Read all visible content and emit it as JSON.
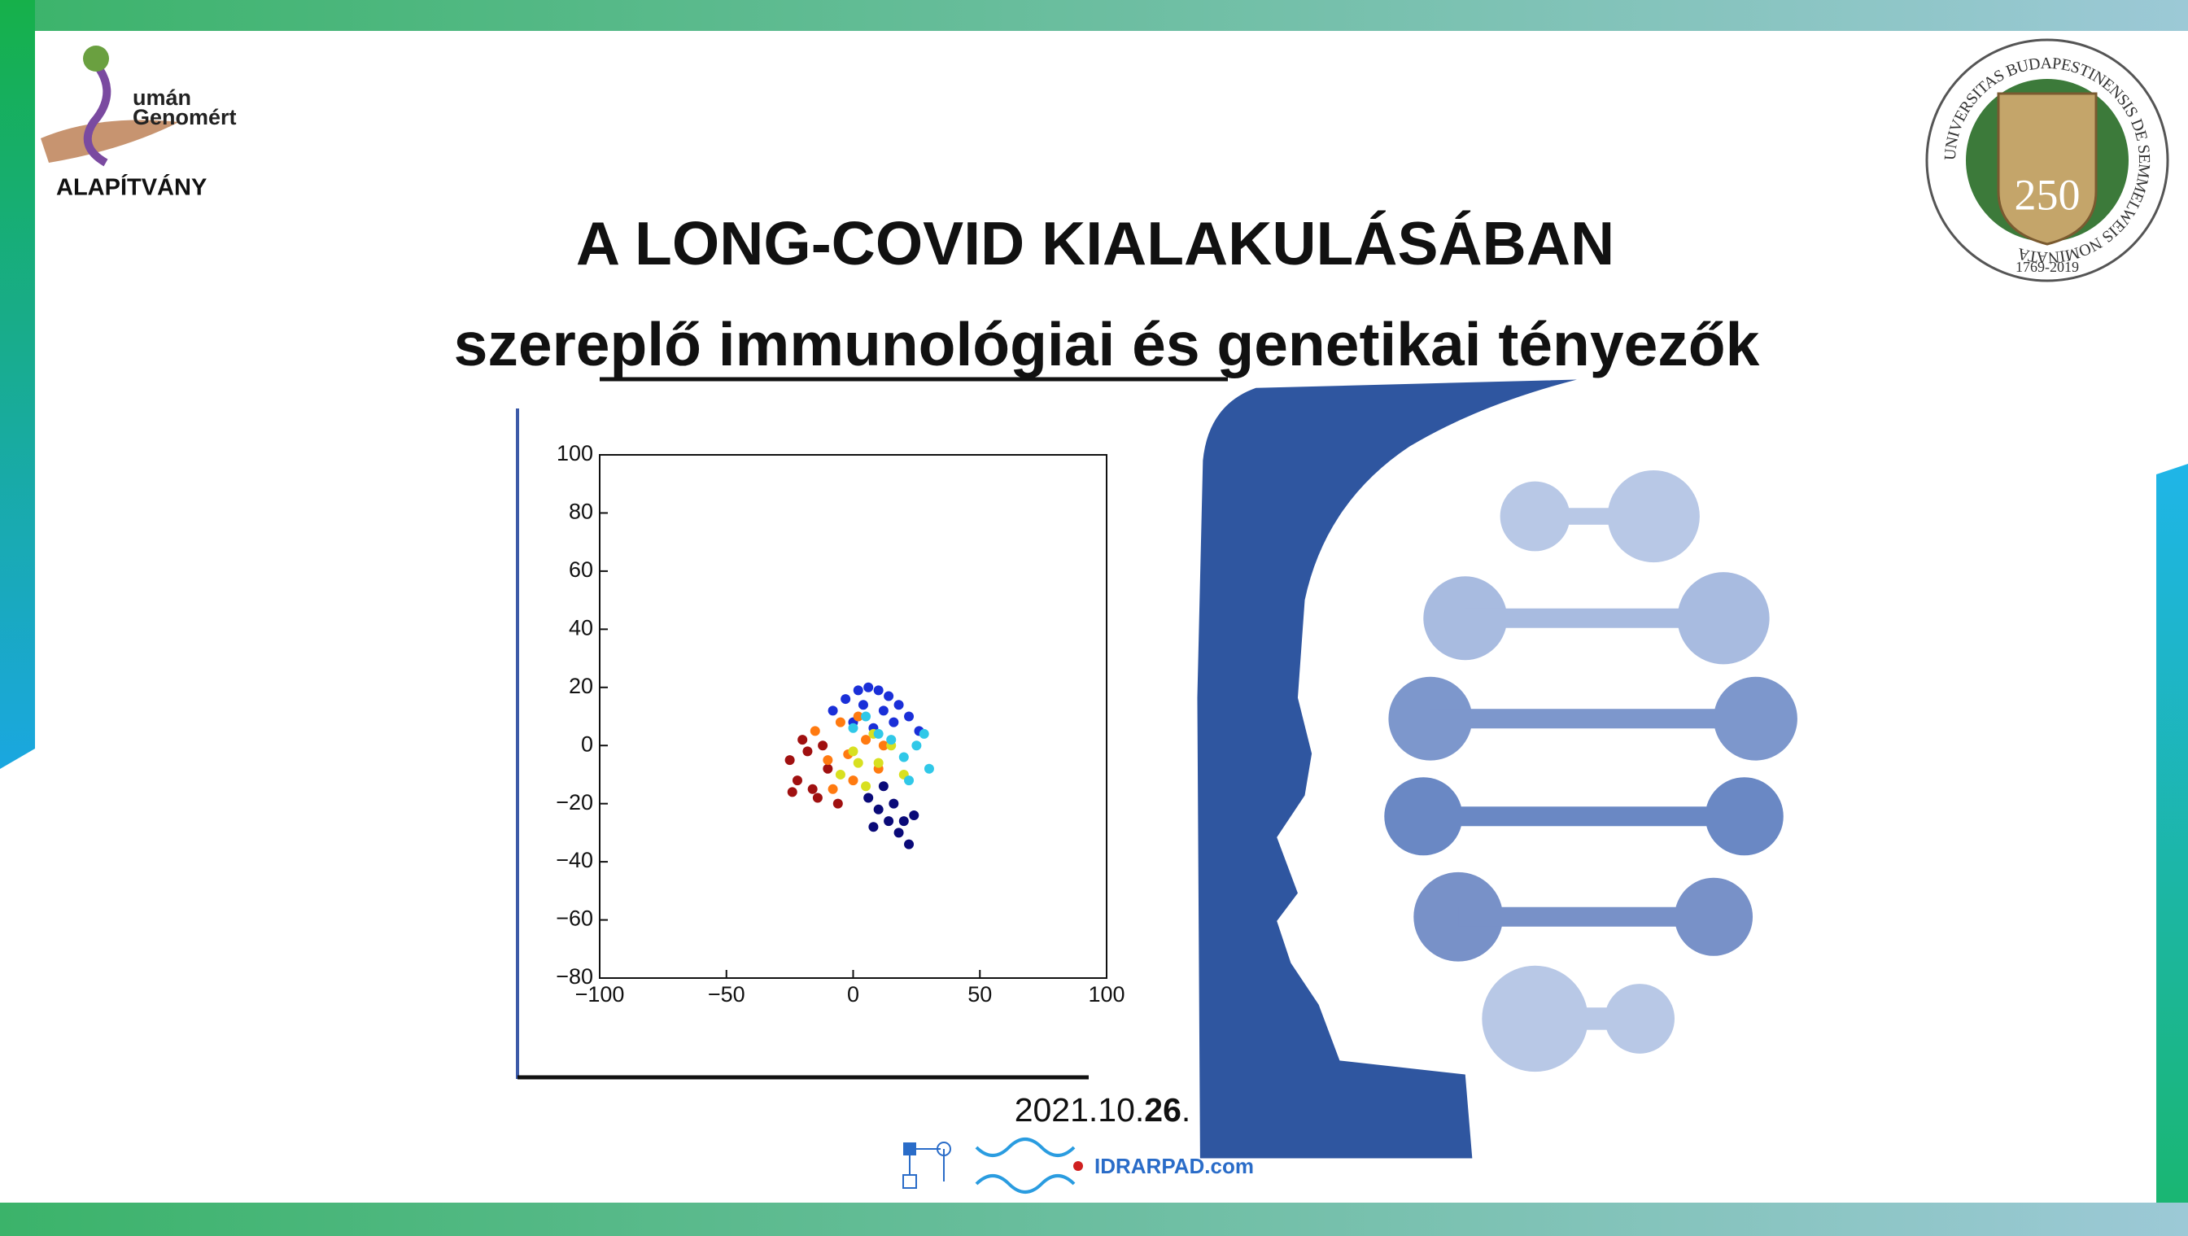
{
  "logo": {
    "line1": "umán",
    "line2": "Genomért",
    "line3": "ALAPÍTVÁNY"
  },
  "seal": {
    "ring": "UNIVERSITAS BUDAPESTINENSIS DE SEMMELWEIS NOMINATA",
    "number": "250",
    "years": "1769-2019"
  },
  "title": {
    "line1": "A LONG-COVID KIALAKULÁSÁBAN",
    "line2": "szereplő immunológiai és genetikai tényezők"
  },
  "chart_data": {
    "type": "scatter",
    "xlim": [
      -100,
      100
    ],
    "xticks": [
      {
        "value": -100,
        "label": "−100"
      },
      {
        "value": -50,
        "label": "−50"
      },
      0,
      50,
      100
    ],
    "ylim": [
      -80,
      100
    ],
    "yticks": [
      {
        "value": -80,
        "label": "−80"
      },
      {
        "value": -60,
        "label": "−60"
      },
      {
        "value": -40,
        "label": "−40"
      },
      {
        "value": -20,
        "label": "−20"
      },
      0,
      20,
      40,
      60,
      80,
      100
    ],
    "series": [
      {
        "color": "#1a2fd8",
        "x": [
          -8,
          -3,
          2,
          6,
          10,
          14,
          18,
          22,
          4,
          12,
          26,
          0,
          8,
          16
        ],
        "y": [
          12,
          16,
          19,
          20,
          19,
          17,
          14,
          10,
          14,
          12,
          5,
          8,
          6,
          8
        ]
      },
      {
        "color": "#0a0a78",
        "x": [
          6,
          10,
          14,
          18,
          22,
          12,
          16,
          20,
          8,
          24
        ],
        "y": [
          -18,
          -22,
          -26,
          -30,
          -34,
          -14,
          -20,
          -26,
          -28,
          -24
        ]
      },
      {
        "color": "#a01010",
        "x": [
          -25,
          -22,
          -18,
          -14,
          -10,
          -20,
          -16,
          -12,
          -6,
          -24
        ],
        "y": [
          -5,
          -12,
          -2,
          -18,
          -8,
          2,
          -15,
          0,
          -20,
          -16
        ]
      },
      {
        "color": "#ff7a10",
        "x": [
          -15,
          -10,
          -5,
          0,
          5,
          10,
          -8,
          2,
          12,
          -2
        ],
        "y": [
          5,
          -5,
          8,
          -12,
          2,
          -8,
          -15,
          10,
          0,
          -3
        ]
      },
      {
        "color": "#d8e020",
        "x": [
          -5,
          0,
          5,
          10,
          15,
          20,
          8,
          2
        ],
        "y": [
          -10,
          -2,
          -14,
          -6,
          0,
          -10,
          4,
          -6
        ]
      },
      {
        "color": "#30c8e8",
        "x": [
          0,
          5,
          10,
          15,
          20,
          25,
          30,
          28,
          22
        ],
        "y": [
          6,
          10,
          4,
          2,
          -4,
          0,
          -8,
          4,
          -12
        ]
      }
    ]
  },
  "date": {
    "prefix": "2021.10.",
    "bold": "26",
    "suffix": "."
  },
  "footer_logo": "IDRARPAD.com"
}
